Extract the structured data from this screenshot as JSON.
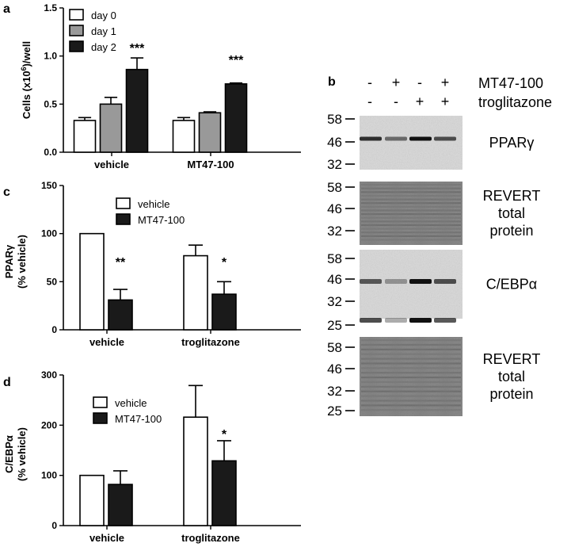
{
  "panels": {
    "a": "a",
    "b": "b",
    "c": "c",
    "d": "d"
  },
  "chart_data": [
    {
      "id": "a",
      "type": "bar",
      "ylabel_main": "Cells (x10",
      "ylabel_sup": "6",
      "ylabel_tail": ")/well",
      "ylim": [
        0,
        1.5
      ],
      "yticks": [
        "0.0",
        "0.5",
        "1.0",
        "1.5"
      ],
      "ytick_values": [
        0,
        0.5,
        1.0,
        1.5
      ],
      "categories": [
        "vehicle",
        "MT47-100"
      ],
      "series": [
        {
          "name": "day 0",
          "fill": "#ffffff",
          "values": [
            0.33,
            0.33
          ],
          "errors": [
            0.03,
            0.03
          ]
        },
        {
          "name": "day 1",
          "fill": "#999999",
          "values": [
            0.5,
            0.41
          ],
          "errors": [
            0.07,
            0.01
          ]
        },
        {
          "name": "day 2",
          "fill": "#1a1a1a",
          "values": [
            0.86,
            0.71
          ],
          "errors": [
            0.12,
            0.01
          ]
        }
      ],
      "significance": [
        "***",
        "***"
      ]
    },
    {
      "id": "c",
      "type": "bar",
      "ylabel_main": "PPARγ",
      "ylabel_sub": "(% vehicle)",
      "ylim": [
        0,
        150
      ],
      "yticks": [
        "0",
        "50",
        "100",
        "150"
      ],
      "ytick_values": [
        0,
        50,
        100,
        150
      ],
      "categories": [
        "vehicle",
        "troglitazone"
      ],
      "series": [
        {
          "name": "vehicle",
          "fill": "#ffffff",
          "values": [
            100,
            77
          ],
          "errors": [
            0,
            11
          ]
        },
        {
          "name": "MT47-100",
          "fill": "#1a1a1a",
          "values": [
            31,
            37
          ],
          "errors": [
            11,
            13
          ]
        }
      ],
      "significance": [
        "**",
        "*"
      ]
    },
    {
      "id": "d",
      "type": "bar",
      "ylabel_main": "C/EBPα",
      "ylabel_sub": "(% vehicle)",
      "ylim": [
        0,
        300
      ],
      "yticks": [
        "0",
        "100",
        "200",
        "300"
      ],
      "ytick_values": [
        0,
        100,
        200,
        300
      ],
      "categories": [
        "vehicle",
        "troglitazone"
      ],
      "series": [
        {
          "name": "vehicle",
          "fill": "#ffffff",
          "values": [
            100,
            216
          ],
          "errors": [
            0,
            63
          ]
        },
        {
          "name": "MT47-100",
          "fill": "#1a1a1a",
          "values": [
            82,
            129
          ],
          "errors": [
            27,
            40
          ]
        }
      ],
      "significance": [
        "",
        "*"
      ]
    }
  ],
  "western": {
    "treatments": [
      {
        "label": "MT47-100",
        "signs": [
          "-",
          "+",
          "-",
          "+"
        ]
      },
      {
        "label": "troglitazone",
        "signs": [
          "-",
          "-",
          "+",
          "+"
        ]
      }
    ],
    "blots": [
      {
        "label_lines": [
          "PPARγ"
        ],
        "markers": [
          "58",
          "46",
          "32"
        ]
      },
      {
        "label_lines": [
          "REVERT",
          "total",
          "protein"
        ],
        "markers": [
          "58",
          "46",
          "32"
        ]
      },
      {
        "label_lines": [
          "C/EBPα"
        ],
        "markers": [
          "58",
          "46",
          "32",
          "25"
        ]
      },
      {
        "label_lines": [
          "REVERT",
          "total",
          "protein"
        ],
        "markers": [
          "58",
          "46",
          "32",
          "25"
        ]
      }
    ]
  }
}
